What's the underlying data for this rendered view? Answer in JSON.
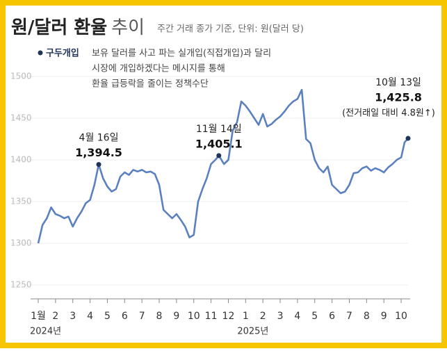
{
  "chart_data": {
    "type": "line",
    "title": [
      "원/달러 환율",
      "추이"
    ],
    "subtitle": "주간 거래 종가 기준, 단위: 원(달러 당)",
    "legend": {
      "label": "구두개입",
      "description": [
        "보유 달러를 사고 파는 실개입(직접개입)과 달리",
        "시장에 개입하겠다는 메시지를 통해",
        "환율 급등락을 줄이는 정책수단"
      ],
      "color": "#1f3457"
    },
    "series": [
      {
        "name": "원/달러 환율",
        "color": "#5b80c0",
        "x": [
          0,
          0.25,
          0.5,
          0.75,
          1,
          1.25,
          1.5,
          1.75,
          2,
          2.25,
          2.5,
          2.75,
          3,
          3.25,
          3.5,
          3.75,
          4,
          4.25,
          4.5,
          4.75,
          5,
          5.25,
          5.5,
          5.75,
          6,
          6.25,
          6.5,
          6.75,
          7,
          7.25,
          7.5,
          7.75,
          8,
          8.25,
          8.5,
          8.75,
          9,
          9.25,
          9.5,
          9.75,
          10,
          10.25,
          10.45,
          10.75,
          11,
          11.25,
          11.5,
          11.75,
          12,
          12.25,
          12.5,
          12.75,
          13,
          13.25,
          13.5,
          13.75,
          14,
          14.25,
          14.5,
          14.75,
          15,
          15.25,
          15.5,
          15.75,
          16,
          16.25,
          16.5,
          16.75,
          17,
          17.25,
          17.5,
          17.75,
          18,
          18.25,
          18.5,
          18.75,
          19,
          19.25,
          19.5,
          19.75,
          20,
          20.25,
          20.5,
          20.75,
          21,
          21.2,
          21.4
        ],
        "values": [
          1300,
          1322,
          1330,
          1343,
          1335,
          1333,
          1330,
          1332,
          1320,
          1330,
          1338,
          1348,
          1352,
          1370,
          1394.5,
          1378,
          1368,
          1362,
          1365,
          1380,
          1385,
          1382,
          1388,
          1386,
          1388,
          1385,
          1386,
          1383,
          1370,
          1340,
          1335,
          1330,
          1335,
          1328,
          1320,
          1307,
          1310,
          1350,
          1365,
          1378,
          1395,
          1400,
          1405.1,
          1395,
          1400,
          1435,
          1445,
          1470,
          1465,
          1458,
          1450,
          1442,
          1455,
          1440,
          1443,
          1448,
          1452,
          1458,
          1465,
          1470,
          1473,
          1484,
          1425,
          1420,
          1400,
          1390,
          1385,
          1392,
          1370,
          1365,
          1360,
          1362,
          1370,
          1384,
          1385,
          1390,
          1392,
          1387,
          1390,
          1388,
          1385,
          1391,
          1395,
          1400,
          1403,
          1421,
          1425.8
        ]
      }
    ],
    "annotations": [
      {
        "date": "4월 16일",
        "x": 3.5,
        "value": 1394.5,
        "value_label": "1,394.5"
      },
      {
        "date": "11월 14일",
        "x": 10.45,
        "value": 1405.1,
        "value_label": "1,405.1"
      },
      {
        "date": "10월 13일",
        "x": 21.4,
        "value": 1425.8,
        "value_label": "1,425.8",
        "note": "(전거래일 대비 4.8원↑)"
      }
    ],
    "xlim": [
      0,
      21.4
    ],
    "xticks": [
      {
        "value": 0,
        "label": "1월"
      },
      {
        "value": 1,
        "label": "2"
      },
      {
        "value": 2,
        "label": "3"
      },
      {
        "value": 3,
        "label": "4"
      },
      {
        "value": 4,
        "label": "5"
      },
      {
        "value": 5,
        "label": "6"
      },
      {
        "value": 6,
        "label": "7"
      },
      {
        "value": 7,
        "label": "8"
      },
      {
        "value": 8,
        "label": "9"
      },
      {
        "value": 9,
        "label": "10"
      },
      {
        "value": 10,
        "label": "11"
      },
      {
        "value": 11,
        "label": "12"
      },
      {
        "value": 12,
        "label": "1"
      },
      {
        "value": 13,
        "label": "2"
      },
      {
        "value": 14,
        "label": "3"
      },
      {
        "value": 15,
        "label": "4"
      },
      {
        "value": 16,
        "label": "5"
      },
      {
        "value": 17,
        "label": "6"
      },
      {
        "value": 18,
        "label": "7"
      },
      {
        "value": 19,
        "label": "8"
      },
      {
        "value": 20,
        "label": "9"
      },
      {
        "value": 21,
        "label": "10"
      }
    ],
    "year_labels": [
      {
        "value": 0,
        "label": "2024년"
      },
      {
        "value": 12,
        "label": "2025년"
      }
    ],
    "ylim": [
      1250,
      1500
    ],
    "yticks": [
      1250,
      1300,
      1350,
      1400,
      1450,
      1500
    ],
    "grid": true
  }
}
